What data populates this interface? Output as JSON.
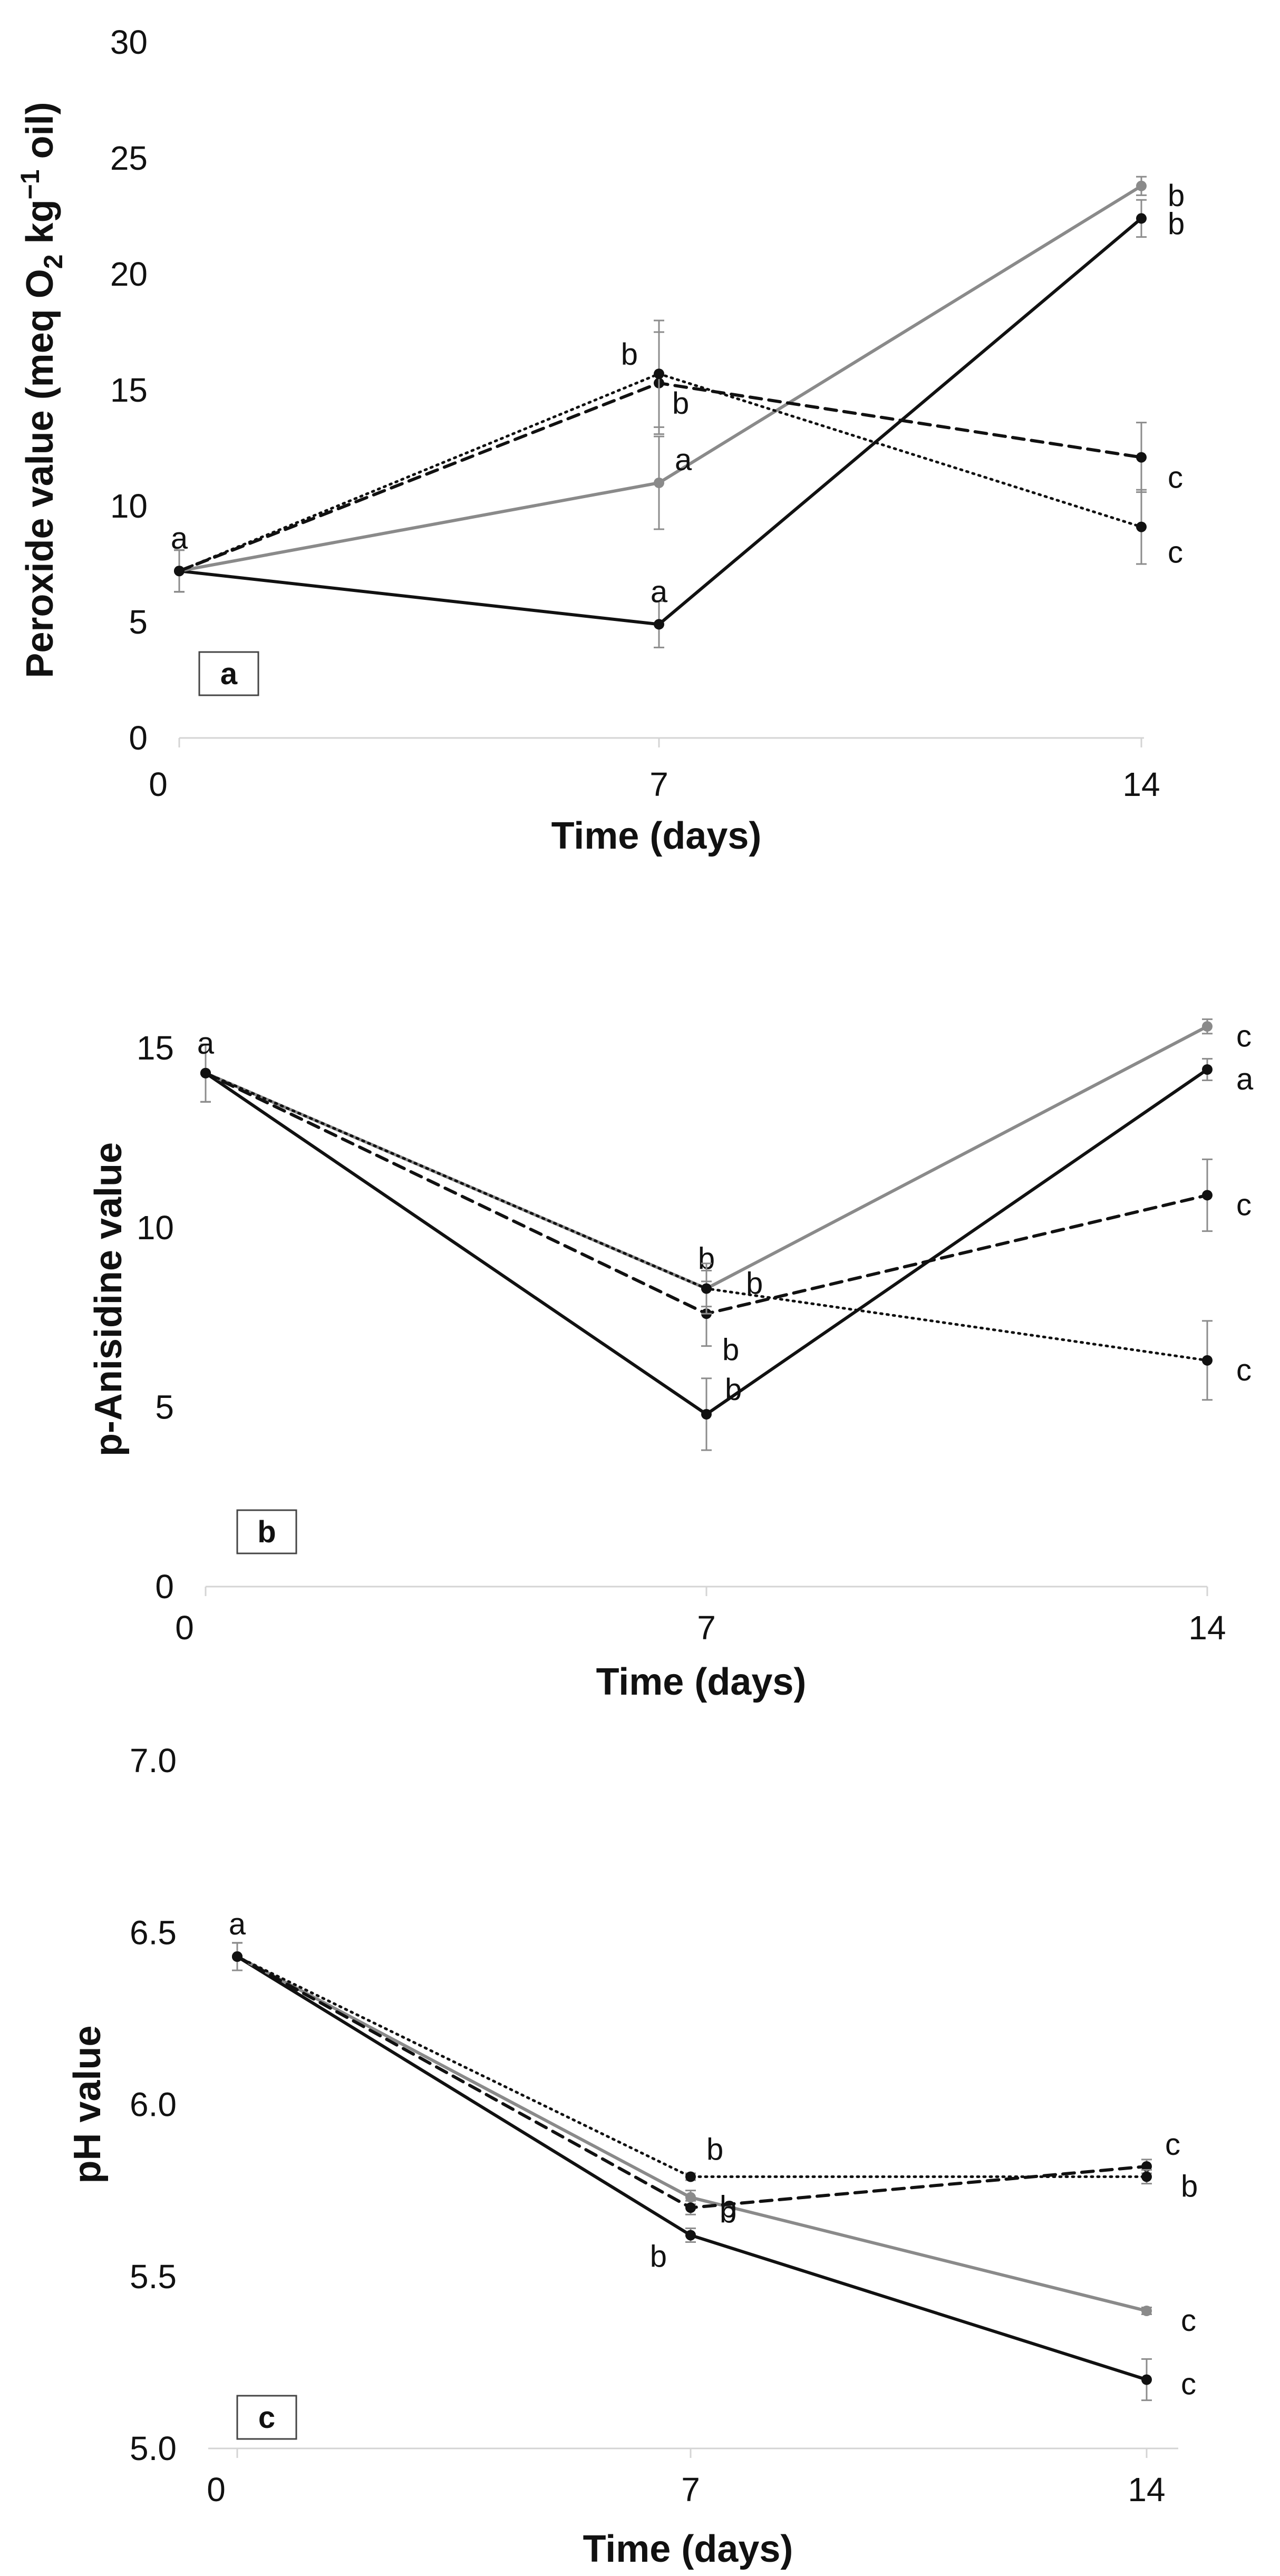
{
  "chart_data": [
    {
      "type": "line",
      "panel_label": "a",
      "xlabel": "Time (days)",
      "ylabel_parts": {
        "pre": "Peroxide value (meq O",
        "sub": "2",
        "mid": " kg",
        "sup": "−1",
        "post": " oil)"
      },
      "x": [
        0,
        7,
        14
      ],
      "x_ticks": [
        "0",
        "7",
        "14"
      ],
      "ylim": [
        0,
        30
      ],
      "y_ticks": [
        "0",
        "5",
        "10",
        "15",
        "20",
        "25",
        "30"
      ],
      "series": [
        {
          "name": "solid-black",
          "color": "#111111",
          "dash": "",
          "values": [
            7.2,
            4.9,
            22.4
          ],
          "errors": [
            0.9,
            1.0,
            0.8
          ],
          "letters": [
            "",
            "a",
            "b"
          ]
        },
        {
          "name": "solid-gray",
          "color": "#8a8a8a",
          "dash": "",
          "values": [
            7.2,
            11.0,
            23.8
          ],
          "errors": [
            0.9,
            2.0,
            0.4
          ],
          "letters": [
            "",
            "a",
            "b"
          ]
        },
        {
          "name": "dashed-black",
          "color": "#111111",
          "dash": "22,14",
          "values": [
            7.2,
            15.3,
            12.1
          ],
          "errors": [
            0.9,
            2.2,
            1.5
          ],
          "letters": [
            "",
            "b",
            "c"
          ]
        },
        {
          "name": "dotted-black",
          "color": "#111111",
          "dash": "3,9",
          "values": [
            7.2,
            15.7,
            9.1
          ],
          "errors": [
            0.9,
            2.3,
            1.6
          ],
          "letters": [
            "a",
            "b",
            "c"
          ]
        }
      ]
    },
    {
      "type": "line",
      "panel_label": "b",
      "xlabel": "Time (days)",
      "ylabel": "p-Anisidine value",
      "x": [
        0,
        7,
        14
      ],
      "x_ticks": [
        "0",
        "7",
        "14"
      ],
      "ylim": [
        0,
        16
      ],
      "y_ticks": [
        "0",
        "5",
        "10",
        "15"
      ],
      "series": [
        {
          "name": "solid-black",
          "color": "#111111",
          "dash": "",
          "values": [
            14.3,
            4.8,
            14.4
          ],
          "errors": [
            0.8,
            1.0,
            0.3
          ],
          "letters": [
            "",
            "b",
            "a"
          ]
        },
        {
          "name": "solid-gray",
          "color": "#8a8a8a",
          "dash": "",
          "values": [
            14.3,
            8.3,
            15.6
          ],
          "errors": [
            0.8,
            0.5,
            0.2
          ],
          "letters": [
            "",
            "b",
            "c"
          ]
        },
        {
          "name": "dashed-black",
          "color": "#111111",
          "dash": "22,14",
          "values": [
            14.3,
            7.6,
            10.9
          ],
          "errors": [
            0.8,
            0.9,
            1.0
          ],
          "letters": [
            "",
            "b",
            "c"
          ]
        },
        {
          "name": "dotted-black",
          "color": "#111111",
          "dash": "3,9",
          "values": [
            14.3,
            8.3,
            6.3
          ],
          "errors": [
            0.8,
            0.7,
            1.1
          ],
          "letters": [
            "a",
            "b",
            "c"
          ]
        }
      ]
    },
    {
      "type": "line",
      "panel_label": "c",
      "xlabel": "Time (days)",
      "ylabel": "pH value",
      "x": [
        0,
        7,
        14
      ],
      "x_ticks": [
        "0",
        "7",
        "14"
      ],
      "ylim": [
        5.0,
        7.0
      ],
      "y_ticks": [
        "5.0",
        "5.5",
        "6.0",
        "6.5",
        "7.0"
      ],
      "series": [
        {
          "name": "solid-black",
          "color": "#111111",
          "dash": "",
          "values": [
            6.43,
            5.62,
            5.2
          ],
          "errors": [
            0.04,
            0.02,
            0.06
          ],
          "letters": [
            "",
            "b",
            "c"
          ]
        },
        {
          "name": "solid-gray",
          "color": "#8a8a8a",
          "dash": "",
          "values": [
            6.43,
            5.73,
            5.4
          ],
          "errors": [
            0.04,
            0.02,
            0.01
          ],
          "letters": [
            "",
            "b",
            "c"
          ]
        },
        {
          "name": "dashed-black",
          "color": "#111111",
          "dash": "22,14",
          "values": [
            6.43,
            5.7,
            5.82
          ],
          "errors": [
            0.04,
            0.02,
            0.02
          ],
          "letters": [
            "",
            "b",
            "c"
          ]
        },
        {
          "name": "dotted-black",
          "color": "#111111",
          "dash": "3,9",
          "values": [
            6.43,
            5.79,
            5.79
          ],
          "errors": [
            0.04,
            0.01,
            0.02
          ],
          "letters": [
            "a",
            "b",
            "b"
          ]
        }
      ]
    }
  ]
}
